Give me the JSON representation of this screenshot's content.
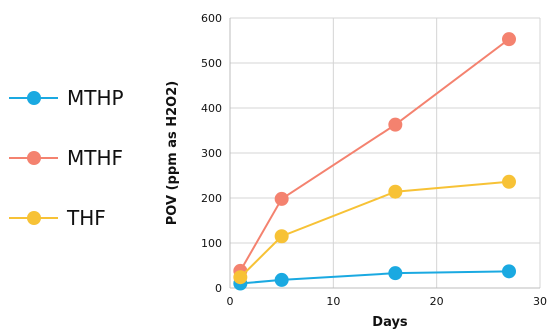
{
  "chart_data": {
    "type": "line",
    "xlabel": "Days",
    "ylabel": "POV (ppm as H2O2)",
    "xlim": [
      0,
      30
    ],
    "ylim": [
      0,
      600
    ],
    "xticks": [
      0,
      10,
      20,
      30
    ],
    "yticks": [
      0,
      100,
      200,
      300,
      400,
      500,
      600
    ],
    "grid": true,
    "legend_position": "left",
    "series": [
      {
        "name": "MTHP",
        "color": "#1aa9e1",
        "x": [
          1,
          5,
          16,
          27
        ],
        "y": [
          10,
          18,
          33,
          37
        ]
      },
      {
        "name": "MTHF",
        "color": "#f4826f",
        "x": [
          1,
          5,
          16,
          27
        ],
        "y": [
          38,
          198,
          363,
          553
        ]
      },
      {
        "name": "THF",
        "color": "#f7c236",
        "x": [
          1,
          5,
          16,
          27
        ],
        "y": [
          24,
          115,
          214,
          236
        ]
      }
    ]
  }
}
